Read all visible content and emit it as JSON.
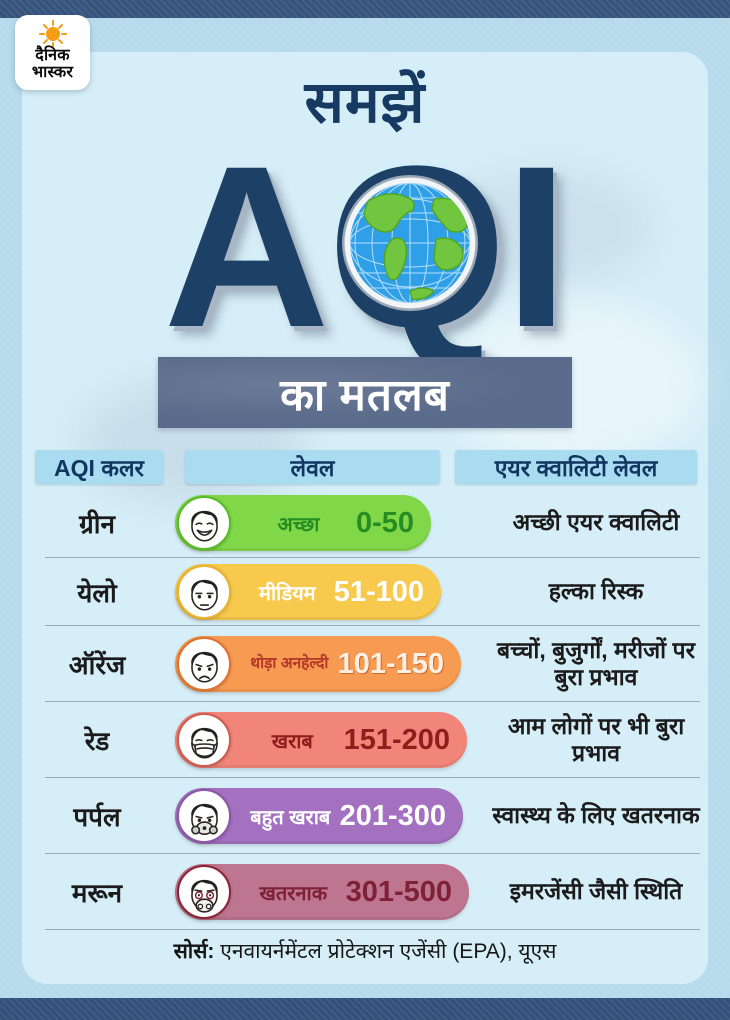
{
  "masthead": {
    "logo_line1": "दैनिक",
    "logo_line2": "भास्कर",
    "sun_icon_color": "#f59d15"
  },
  "title": {
    "pre": "समझें",
    "main": "AQI",
    "sub": "का मतलब"
  },
  "colors": {
    "background": "#b7dbec",
    "panel": "#d6eef7",
    "navy_bar": "#33507a",
    "title_text": "#1d4067",
    "subtitle_box": "#5a6b8b",
    "header_box": "#a9dbf1",
    "header_text": "#12365f"
  },
  "table": {
    "headers": [
      "AQI कलर",
      "लेवल",
      "एयर क्वालिटी लेवल"
    ],
    "rows": [
      {
        "color_name": "ग्रीन",
        "level": "अच्छा",
        "range": "0-50",
        "impact": "अच्छी एयर क्वालिटी",
        "face_icon": "happy-face-icon",
        "pill_bg": "#80d848",
        "ring": "#58bb28",
        "level_color": "#268c23",
        "range_color": "#268c23",
        "range_shadow": false
      },
      {
        "color_name": "येलो",
        "level": "मीडियम",
        "range": "51-100",
        "impact": "हल्का रिस्क",
        "face_icon": "neutral-face-icon",
        "pill_bg": "#f7c94c",
        "ring": "#eab32f",
        "level_color": "#ffffff",
        "range_color": "#ffffff",
        "range_shadow": false
      },
      {
        "color_name": "ऑरेंज",
        "level": "थोड़ा अनहेल्दी",
        "range": "101-150",
        "impact": "बच्चों, बुजुर्गों, मरीजों पर बुरा प्रभाव",
        "face_icon": "sad-face-icon",
        "pill_bg": "#f79b52",
        "ring": "#e2702f",
        "level_color": "#b5372a",
        "range_color": "#fdf1e4",
        "range_shadow": true
      },
      {
        "color_name": "रेड",
        "level": "खराब",
        "range": "151-200",
        "impact": "आम लोगों पर भी बुरा प्रभाव",
        "face_icon": "mask-face-icon",
        "pill_bg": "#f28579",
        "ring": "#cf5a50",
        "level_color": "#8f1d1d",
        "range_color": "#8f1d1d",
        "range_shadow": false
      },
      {
        "color_name": "पर्पल",
        "level": "बहुत खराब",
        "range": "201-300",
        "impact": "स्वास्थ्य के लिए खतरनाक",
        "face_icon": "respirator-face-icon",
        "pill_bg": "#a471c1",
        "ring": "#8b57a8",
        "level_color": "#ffffff",
        "range_color": "#ffffff",
        "range_shadow": false
      },
      {
        "color_name": "मरून",
        "level": "खतरनाक",
        "range": "301-500",
        "impact": "इमरजेंसी जैसी स्थिति",
        "face_icon": "gasmask-face-icon",
        "pill_bg": "#bd7590",
        "ring": "#8c2135",
        "level_color": "#7e2136",
        "range_color": "#7e2136",
        "range_shadow": false
      }
    ]
  },
  "footer": {
    "source_label": "सोर्स:",
    "source_text": "एनवायर्नमेंटल प्रोटेक्शन एजेंसी (EPA), यूएस"
  }
}
